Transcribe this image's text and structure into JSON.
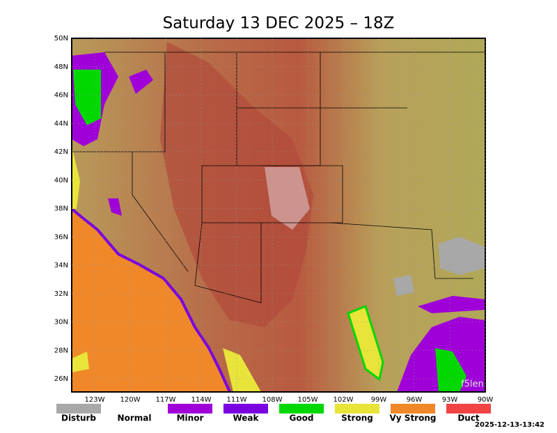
{
  "header": {
    "title": "Saturday 13 DEC 2025 – 18Z"
  },
  "map": {
    "lat_labels": [
      "50N",
      "48N",
      "46N",
      "44N",
      "42N",
      "40N",
      "38N",
      "36N",
      "34N",
      "32N",
      "30N",
      "28N",
      "26N"
    ],
    "lon_labels": [
      "123W",
      "120W",
      "117W",
      "114W",
      "111W",
      "108W",
      "105W",
      "102W",
      "99W",
      "96W",
      "93W",
      "90W"
    ],
    "watermark": "f5len"
  },
  "legend": {
    "items": [
      {
        "label": "Disturb",
        "color": "#a8a8a8"
      },
      {
        "label": "Normal"
      },
      {
        "label": "Minor",
        "color": "#a000d8"
      },
      {
        "label": "Weak",
        "color": "#7a00e0"
      },
      {
        "label": "Good",
        "color": "#00d800"
      },
      {
        "label": "Strong",
        "color": "#e8e43a"
      },
      {
        "label": "Vy Strong",
        "color": "#f0882a"
      },
      {
        "label": "Duct",
        "color": "#f04444"
      }
    ]
  },
  "footer": {
    "timestamp": "2025-12-13-13:42"
  }
}
